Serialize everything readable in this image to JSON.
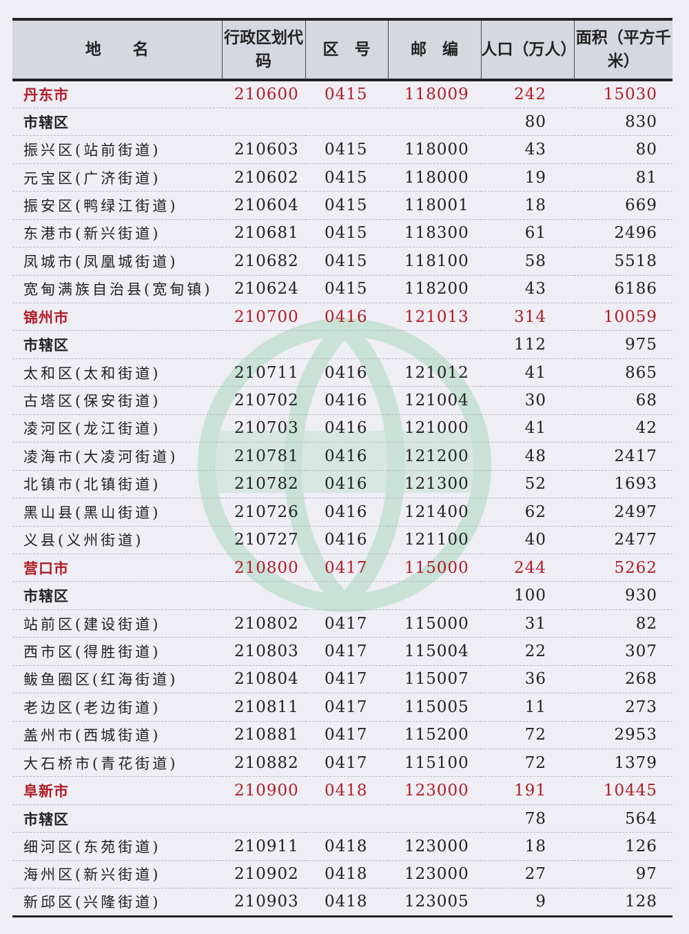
{
  "header": {
    "name": "地　　名",
    "code": "行政区划代码",
    "area_code": "区　号",
    "postal": "邮　编",
    "population": "人口（万人）",
    "area": "面积（平方千米）"
  },
  "colors": {
    "city": "#b01c25",
    "header_bg": "#d6d8df",
    "watermark": "#6cc08a"
  },
  "rows": [
    {
      "type": "city",
      "name": "丹东市",
      "code": "210600",
      "area_code": "0415",
      "postal": "118009",
      "population": "242",
      "area": "15030"
    },
    {
      "type": "sub",
      "name": "市辖区",
      "code": "",
      "area_code": "",
      "postal": "",
      "population": "80",
      "area": "830"
    },
    {
      "type": "row",
      "name": "振兴区(站前街道)",
      "code": "210603",
      "area_code": "0415",
      "postal": "118000",
      "population": "43",
      "area": "80"
    },
    {
      "type": "row",
      "name": "元宝区(广济街道)",
      "code": "210602",
      "area_code": "0415",
      "postal": "118000",
      "population": "19",
      "area": "81"
    },
    {
      "type": "row",
      "name": "振安区(鸭绿江街道)",
      "code": "210604",
      "area_code": "0415",
      "postal": "118001",
      "population": "18",
      "area": "669"
    },
    {
      "type": "row",
      "name": "东港市(新兴街道)",
      "code": "210681",
      "area_code": "0415",
      "postal": "118300",
      "population": "61",
      "area": "2496"
    },
    {
      "type": "row",
      "name": "凤城市(凤凰城街道)",
      "code": "210682",
      "area_code": "0415",
      "postal": "118100",
      "population": "58",
      "area": "5518"
    },
    {
      "type": "row",
      "name": "宽甸满族自治县(宽甸镇)",
      "code": "210624",
      "area_code": "0415",
      "postal": "118200",
      "population": "43",
      "area": "6186"
    },
    {
      "type": "city",
      "name": "锦州市",
      "code": "210700",
      "area_code": "0416",
      "postal": "121013",
      "population": "314",
      "area": "10059"
    },
    {
      "type": "sub",
      "name": "市辖区",
      "code": "",
      "area_code": "",
      "postal": "",
      "population": "112",
      "area": "975"
    },
    {
      "type": "row",
      "name": "太和区(太和街道)",
      "code": "210711",
      "area_code": "0416",
      "postal": "121012",
      "population": "41",
      "area": "865"
    },
    {
      "type": "row",
      "name": "古塔区(保安街道)",
      "code": "210702",
      "area_code": "0416",
      "postal": "121004",
      "population": "30",
      "area": "68"
    },
    {
      "type": "row",
      "name": "凌河区(龙江街道)",
      "code": "210703",
      "area_code": "0416",
      "postal": "121000",
      "population": "41",
      "area": "42"
    },
    {
      "type": "row",
      "name": "凌海市(大凌河街道)",
      "code": "210781",
      "area_code": "0416",
      "postal": "121200",
      "population": "48",
      "area": "2417"
    },
    {
      "type": "row",
      "name": "北镇市(北镇街道)",
      "code": "210782",
      "area_code": "0416",
      "postal": "121300",
      "population": "52",
      "area": "1693"
    },
    {
      "type": "row",
      "name": "黑山县(黑山街道)",
      "code": "210726",
      "area_code": "0416",
      "postal": "121400",
      "population": "62",
      "area": "2497"
    },
    {
      "type": "row",
      "name": "义县(义州街道)",
      "code": "210727",
      "area_code": "0416",
      "postal": "121100",
      "population": "40",
      "area": "2477"
    },
    {
      "type": "city",
      "name": "营口市",
      "code": "210800",
      "area_code": "0417",
      "postal": "115000",
      "population": "244",
      "area": "5262"
    },
    {
      "type": "sub",
      "name": "市辖区",
      "code": "",
      "area_code": "",
      "postal": "",
      "population": "100",
      "area": "930"
    },
    {
      "type": "row",
      "name": "站前区(建设街道)",
      "code": "210802",
      "area_code": "0417",
      "postal": "115000",
      "population": "31",
      "area": "82"
    },
    {
      "type": "row",
      "name": "西市区(得胜街道)",
      "code": "210803",
      "area_code": "0417",
      "postal": "115004",
      "population": "22",
      "area": "307"
    },
    {
      "type": "row",
      "name": "鲅鱼圈区(红海街道)",
      "code": "210804",
      "area_code": "0417",
      "postal": "115007",
      "population": "36",
      "area": "268"
    },
    {
      "type": "row",
      "name": "老边区(老边街道)",
      "code": "210811",
      "area_code": "0417",
      "postal": "115005",
      "population": "11",
      "area": "273"
    },
    {
      "type": "row",
      "name": "盖州市(西城街道)",
      "code": "210881",
      "area_code": "0417",
      "postal": "115200",
      "population": "72",
      "area": "2953"
    },
    {
      "type": "row",
      "name": "大石桥市(青花街道)",
      "code": "210882",
      "area_code": "0417",
      "postal": "115100",
      "population": "72",
      "area": "1379"
    },
    {
      "type": "city",
      "name": "阜新市",
      "code": "210900",
      "area_code": "0418",
      "postal": "123000",
      "population": "191",
      "area": "10445"
    },
    {
      "type": "sub",
      "name": "市辖区",
      "code": "",
      "area_code": "",
      "postal": "",
      "population": "78",
      "area": "564"
    },
    {
      "type": "row",
      "name": "细河区(东苑街道)",
      "code": "210911",
      "area_code": "0418",
      "postal": "123000",
      "population": "18",
      "area": "126"
    },
    {
      "type": "row",
      "name": "海州区(新兴街道)",
      "code": "210902",
      "area_code": "0418",
      "postal": "123000",
      "population": "27",
      "area": "97"
    },
    {
      "type": "row",
      "name": "新邱区(兴隆街道)",
      "code": "210903",
      "area_code": "0418",
      "postal": "123005",
      "population": "9",
      "area": "128"
    }
  ]
}
